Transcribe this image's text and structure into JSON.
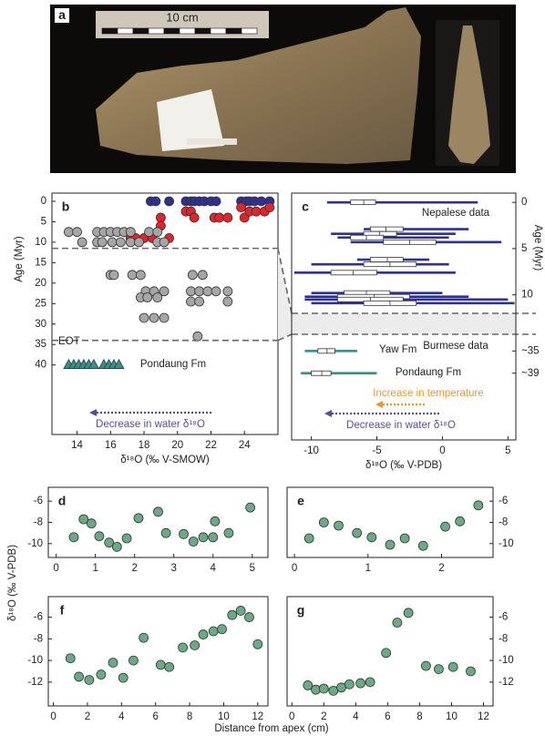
{
  "panel_a": {
    "label": "a",
    "scale_label": "10 cm"
  },
  "figure": {
    "xlabel": "Distance from apex (cm)",
    "ylabel": "δ¹⁸O (‰ V-PDB)"
  },
  "chart_data": [
    {
      "type": "scatter",
      "label": "b",
      "xlabel": "δ¹⁸O (‰ V-SMOW)",
      "ylabel": "Age (Myr)",
      "xlim": [
        12.5,
        26
      ],
      "ylim": [
        -2,
        57
      ],
      "y_inverted": true,
      "y_axis_side": "left",
      "xticks": [
        14,
        16,
        18,
        20,
        22,
        24
      ],
      "yticks": [
        0,
        5,
        10,
        15,
        20,
        25,
        30,
        35,
        40
      ],
      "hlines": [
        11.5,
        34
      ],
      "annotations": [
        {
          "text": "EOT",
          "color": "#222222"
        },
        {
          "text": "Pondaung Fm",
          "color": "#222222"
        },
        {
          "text": "Decrease in water δ¹⁸O",
          "color": "#5b4b9b"
        }
      ],
      "series": [
        {
          "color": "#2e3192",
          "marker": "circle",
          "x": [
            18.4,
            18.7,
            19.5,
            20.5,
            20.8,
            21.0,
            21.3,
            21.6,
            22.0,
            22.3,
            23.8,
            24.1,
            24.3,
            24.6,
            25.0,
            25.5
          ],
          "values": [
            0,
            0,
            0,
            0,
            0,
            0,
            0,
            0,
            0,
            0,
            0,
            0,
            0,
            0,
            0,
            0
          ]
        },
        {
          "color": "#e3242b",
          "marker": "circle",
          "x": [
            17.2,
            17.5,
            18.0,
            18.5,
            19.0,
            19.5,
            19.0,
            20.5,
            20.8,
            21.0,
            22.2,
            22.5,
            23.0,
            24.0,
            23.8,
            24.3,
            24.7,
            25.2,
            25.5
          ],
          "values": [
            9,
            9,
            9,
            9,
            4,
            9,
            6,
            2.5,
            2.5,
            4,
            4,
            4,
            4,
            4,
            1.5,
            2.5,
            2.5,
            2.5,
            1.5
          ]
        },
        {
          "color": "#a6a6a6",
          "marker": "circle",
          "x": [
            13.5,
            14.0,
            15.2,
            15.6,
            16.0,
            16.4,
            16.8,
            17.2,
            18.3,
            18.8,
            14.3,
            15.2,
            15.5,
            16.1,
            16.6,
            17.2,
            17.7,
            18.8,
            19.2,
            16.0,
            16.2,
            17.3,
            17.8,
            18.1,
            18.6,
            19.2,
            17.8,
            18.2,
            18.8,
            20.9,
            21.5,
            20.8,
            21.3,
            21.8,
            22.3,
            20.8,
            21.3,
            23.0,
            23.0,
            18.0,
            18.6,
            19.2,
            21.2
          ],
          "values": [
            7.5,
            7.5,
            7.5,
            7.5,
            7.5,
            7.5,
            7.5,
            7.5,
            7.5,
            7.5,
            10,
            10,
            10,
            10,
            10,
            10,
            10,
            10,
            10,
            18,
            18,
            18,
            18,
            22,
            22,
            22,
            23.5,
            23.5,
            23.5,
            18,
            18,
            22,
            22,
            22,
            22,
            24.5,
            24.5,
            22,
            24.5,
            28.5,
            28.5,
            28.5,
            33
          ]
        },
        {
          "color": "#3b8e84",
          "marker": "triangle",
          "x": [
            13.5,
            13.8,
            14.1,
            14.4,
            14.7,
            15.0,
            15.6,
            15.9,
            16.2,
            16.5
          ],
          "values": [
            40,
            40,
            40,
            40,
            40,
            40,
            40,
            40,
            40,
            40
          ]
        }
      ]
    },
    {
      "type": "boxplot",
      "label": "c",
      "xlabel": "δ¹⁸O (‰ V-PDB)",
      "ylabel": "Age (Myr)",
      "xlim": [
        -11.5,
        5.6
      ],
      "ylim": [
        -1,
        51
      ],
      "ybreak": [
        12,
        32
      ],
      "y_inverted": true,
      "y_axis_side": "right",
      "xticks": [
        -10,
        -5,
        0,
        5
      ],
      "yticks": [
        0,
        5,
        10,
        {
          "value": 35,
          "label": "~35"
        },
        {
          "value": 39,
          "label": "~39"
        }
      ],
      "annotations": [
        {
          "text": "Nepalese data",
          "color": "#222222"
        },
        {
          "text": "Burmese data",
          "color": "#222222"
        },
        {
          "text": "Yaw Fm",
          "color": "#222222"
        },
        {
          "text": "Pondaung Fm",
          "color": "#222222"
        },
        {
          "text": "Increase in temperature",
          "color": "#f7941d"
        },
        {
          "text": "Decrease in water δ¹⁸O",
          "color": "#5b4b9b"
        }
      ],
      "series": [
        {
          "color": "#2e3192",
          "y": [
            0,
            2.9,
            3.4,
            3.8,
            4.3,
            6.2,
            6.7,
            7.6,
            9.8,
            10.2,
            10.5,
            10.9
          ],
          "low": [
            -8.8,
            -6.0,
            -8.5,
            -8.0,
            -7.0,
            -6.5,
            -10.0,
            -11.3,
            -10.0,
            -10.5,
            -10.5,
            -10.0
          ],
          "q1": [
            -7.0,
            -5.5,
            -6.0,
            -7.0,
            -4.5,
            -5.5,
            -6.0,
            -8.5,
            -7.5,
            -8.0,
            -8.0,
            -6.0
          ],
          "median": [
            -6.0,
            -4.3,
            -4.8,
            -5.8,
            -2.5,
            -4.2,
            -4.0,
            -6.8,
            -5.8,
            -5.2,
            -5.5,
            -4.0
          ],
          "q3": [
            -5.1,
            -3.0,
            -3.5,
            -4.5,
            -0.5,
            -3.0,
            -2.0,
            -5.0,
            -4.0,
            -2.5,
            -3.0,
            -2.0
          ],
          "high": [
            2.7,
            2.0,
            1.0,
            0.5,
            4.5,
            -1.0,
            0.5,
            1.0,
            0.0,
            2.0,
            5.0,
            5.5
          ]
        },
        {
          "color": "#3b8e84",
          "y": [
            35,
            39
          ],
          "low": [
            -10.5,
            -10.8
          ],
          "q1": [
            -9.5,
            -10.0
          ],
          "median": [
            -8.8,
            -9.2
          ],
          "q3": [
            -8.2,
            -8.5
          ],
          "high": [
            -6.5,
            -5.0
          ]
        }
      ]
    },
    {
      "type": "scatter",
      "label": "d",
      "xlim": [
        -0.2,
        5.4
      ],
      "ylim": [
        -11.3,
        -4.7
      ],
      "y_axis_side": "left",
      "xticks": [
        0,
        1,
        2,
        3,
        4,
        5
      ],
      "yticks": [
        -10,
        -8,
        -6
      ],
      "series": [
        {
          "color": "#6aaa84",
          "marker": "circle",
          "x": [
            0.45,
            0.7,
            0.9,
            1.1,
            1.35,
            1.55,
            1.8,
            2.1,
            2.6,
            2.8,
            3.25,
            3.5,
            3.75,
            4.05,
            4.0,
            4.4,
            4.95
          ],
          "values": [
            -9.4,
            -7.7,
            -8.1,
            -9.3,
            -9.9,
            -10.3,
            -9.5,
            -7.6,
            -7.0,
            -9.0,
            -9.1,
            -9.8,
            -9.4,
            -7.9,
            -9.4,
            -9.0,
            -6.6
          ]
        }
      ]
    },
    {
      "type": "scatter",
      "label": "e",
      "xlim": [
        -0.1,
        2.7
      ],
      "ylim": [
        -11.3,
        -4.7
      ],
      "y_axis_side": "right",
      "xticks": [
        0,
        1,
        2
      ],
      "yticks": [
        -10,
        -8,
        -6
      ],
      "series": [
        {
          "color": "#6aaa84",
          "marker": "circle",
          "x": [
            0.2,
            0.4,
            0.6,
            0.85,
            1.05,
            1.3,
            1.5,
            1.75,
            2.05,
            2.25,
            2.5
          ],
          "values": [
            -9.5,
            -8.0,
            -8.3,
            -9.0,
            -9.4,
            -10.1,
            -9.5,
            -10.2,
            -8.4,
            -7.9,
            -6.4
          ]
        }
      ]
    },
    {
      "type": "scatter",
      "label": "f",
      "xlim": [
        -0.3,
        12.6
      ],
      "ylim": [
        -14.2,
        -4.1
      ],
      "y_axis_side": "left",
      "xticks": [
        0,
        2,
        4,
        6,
        8,
        10,
        12
      ],
      "yticks": [
        -12,
        -10,
        -8,
        -6
      ],
      "series": [
        {
          "color": "#6aaa84",
          "marker": "circle",
          "x": [
            1.0,
            1.5,
            2.1,
            2.8,
            3.5,
            4.1,
            4.7,
            5.3,
            6.3,
            6.8,
            7.6,
            8.3,
            8.8,
            9.4,
            9.9,
            10.5,
            11.0,
            11.5,
            12.0
          ],
          "values": [
            -9.8,
            -11.5,
            -11.8,
            -11.3,
            -10.2,
            -11.6,
            -10.0,
            -7.9,
            -10.4,
            -10.6,
            -8.8,
            -8.6,
            -7.6,
            -7.3,
            -7.1,
            -5.8,
            -5.4,
            -6.0,
            -8.5
          ]
        }
      ]
    },
    {
      "type": "scatter",
      "label": "g",
      "xlim": [
        -0.3,
        12.6
      ],
      "ylim": [
        -14.2,
        -4.1
      ],
      "y_axis_side": "right",
      "xticks": [
        0,
        2,
        4,
        6,
        8,
        10,
        12
      ],
      "yticks": [
        -12,
        -10,
        -8,
        -6
      ],
      "series": [
        {
          "color": "#6aaa84",
          "marker": "circle",
          "x": [
            1.0,
            1.5,
            2.0,
            2.6,
            3.1,
            3.6,
            4.3,
            4.9,
            5.9,
            6.6,
            7.3,
            8.4,
            9.2,
            10.1,
            11.2
          ],
          "values": [
            -12.3,
            -12.7,
            -12.6,
            -12.8,
            -12.5,
            -12.2,
            -12.1,
            -12.0,
            -9.3,
            -6.5,
            -5.6,
            -10.5,
            -10.8,
            -10.6,
            -11.0
          ]
        }
      ]
    }
  ]
}
